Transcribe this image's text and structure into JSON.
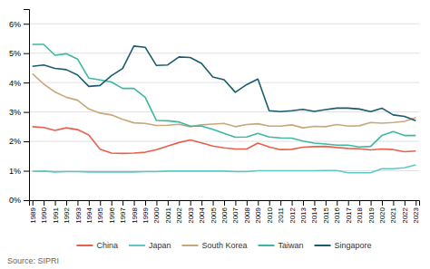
{
  "chart_data": {
    "type": "line",
    "x": [
      1989,
      1990,
      1991,
      1992,
      1993,
      1994,
      1995,
      1996,
      1997,
      1998,
      1999,
      2000,
      2001,
      2002,
      2003,
      2004,
      2005,
      2006,
      2007,
      2008,
      2009,
      2010,
      2011,
      2012,
      2013,
      2014,
      2015,
      2016,
      2017,
      2018,
      2019,
      2020,
      2021,
      2022,
      2023
    ],
    "series": [
      {
        "name": "China",
        "color": "#e8604c",
        "values": [
          2.5,
          2.47,
          2.37,
          2.46,
          2.4,
          2.22,
          1.73,
          1.6,
          1.59,
          1.6,
          1.63,
          1.72,
          1.84,
          1.96,
          2.05,
          1.95,
          1.84,
          1.78,
          1.74,
          1.74,
          1.94,
          1.81,
          1.72,
          1.73,
          1.8,
          1.82,
          1.83,
          1.79,
          1.76,
          1.75,
          1.71,
          1.74,
          1.72,
          1.65,
          1.67
        ]
      },
      {
        "name": "Japan",
        "color": "#5cc8c8",
        "values": [
          0.98,
          0.99,
          0.96,
          0.97,
          0.97,
          0.96,
          0.96,
          0.96,
          0.96,
          0.96,
          0.97,
          0.97,
          0.99,
          0.99,
          0.99,
          0.99,
          0.99,
          0.99,
          0.97,
          0.97,
          1.0,
          1.0,
          1.0,
          1.0,
          1.0,
          1.0,
          1.01,
          1.01,
          0.93,
          0.93,
          0.93,
          1.07,
          1.07,
          1.1,
          1.2
        ]
      },
      {
        "name": "South Korea",
        "color": "#c8a87a",
        "values": [
          4.3,
          3.95,
          3.68,
          3.5,
          3.4,
          3.1,
          2.96,
          2.9,
          2.75,
          2.63,
          2.61,
          2.54,
          2.55,
          2.58,
          2.5,
          2.56,
          2.59,
          2.61,
          2.5,
          2.57,
          2.6,
          2.52,
          2.52,
          2.56,
          2.46,
          2.51,
          2.5,
          2.57,
          2.52,
          2.53,
          2.64,
          2.62,
          2.64,
          2.68,
          2.8
        ]
      },
      {
        "name": "Taiwan",
        "color": "#3cb8a0",
        "values": [
          5.3,
          5.3,
          4.93,
          4.98,
          4.8,
          4.15,
          4.09,
          4.02,
          3.8,
          3.8,
          3.5,
          2.71,
          2.7,
          2.66,
          2.52,
          2.52,
          2.41,
          2.27,
          2.14,
          2.15,
          2.27,
          2.15,
          2.12,
          2.11,
          2.01,
          1.94,
          1.91,
          1.87,
          1.87,
          1.81,
          1.83,
          2.2,
          2.33,
          2.2,
          2.2
        ]
      },
      {
        "name": "Singapore",
        "color": "#1a5c6e",
        "values": [
          4.55,
          4.6,
          4.48,
          4.44,
          4.26,
          3.87,
          3.9,
          4.23,
          4.48,
          5.24,
          5.2,
          4.58,
          4.6,
          4.87,
          4.85,
          4.65,
          4.19,
          4.1,
          3.67,
          3.93,
          4.12,
          3.04,
          3.01,
          3.04,
          3.09,
          3.02,
          3.08,
          3.13,
          3.13,
          3.1,
          3.01,
          3.13,
          2.9,
          2.85,
          2.7
        ]
      }
    ],
    "xlim": [
      1988.7,
      2023.3
    ],
    "xticks": [
      1989,
      1990,
      1991,
      1992,
      1993,
      1994,
      1995,
      1996,
      1997,
      1998,
      1999,
      2000,
      2001,
      2002,
      2003,
      2004,
      2005,
      2006,
      2007,
      2008,
      2009,
      2010,
      2011,
      2012,
      2013,
      2014,
      2015,
      2016,
      2017,
      2018,
      2019,
      2020,
      2021,
      2022,
      2023
    ],
    "ylim": [
      0,
      6.5
    ],
    "yticks": [
      {
        "value": 0,
        "label": "0%"
      },
      {
        "value": 1,
        "label": "1%"
      },
      {
        "value": 2,
        "label": "2%"
      },
      {
        "value": 3,
        "label": "3%"
      },
      {
        "value": 4,
        "label": "4%"
      },
      {
        "value": 5,
        "label": "5%"
      },
      {
        "value": 6,
        "label": "6%"
      }
    ],
    "grid": "y",
    "legend": "bottom",
    "annotations": [
      "Source: SIPRI"
    ]
  }
}
